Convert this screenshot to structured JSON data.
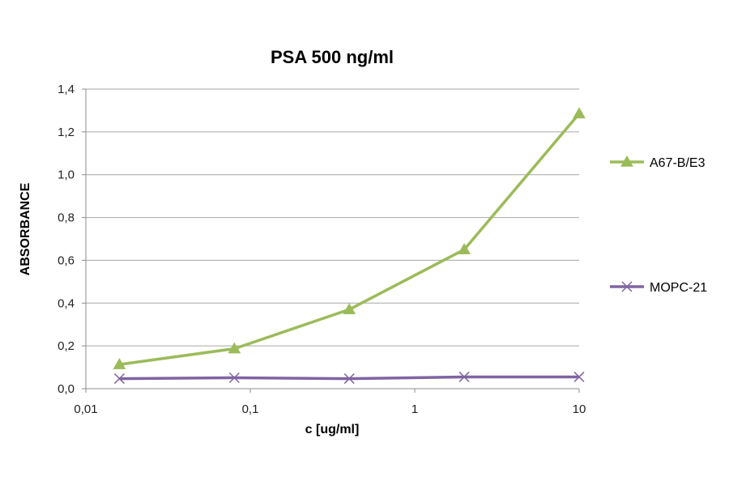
{
  "chart_data": {
    "type": "line",
    "title": "PSA 500 ng/ml",
    "xlabel": "c [ug/ml]",
    "ylabel": "ABSORBANCE",
    "xscale": "log",
    "xlim": [
      0.01,
      10
    ],
    "ylim": [
      0,
      1.4
    ],
    "xticks": [
      "0,01",
      "0,1",
      "1",
      "10"
    ],
    "yticks": [
      "0,0",
      "0,2",
      "0,4",
      "0,6",
      "0,8",
      "1,0",
      "1,2",
      "1,4"
    ],
    "grid": "horizontal",
    "legend_position": "right",
    "series": [
      {
        "name": "A67-B/E3",
        "color": "#9bbb59",
        "marker": "triangle",
        "x": [
          0.016,
          0.08,
          0.4,
          2,
          10
        ],
        "y": [
          0.113,
          0.187,
          0.37,
          0.65,
          1.285
        ]
      },
      {
        "name": "MOPC-21",
        "color": "#8064a2",
        "marker": "x",
        "x": [
          0.016,
          0.08,
          0.4,
          2,
          10
        ],
        "y": [
          0.047,
          0.051,
          0.047,
          0.055,
          0.055
        ]
      }
    ]
  }
}
